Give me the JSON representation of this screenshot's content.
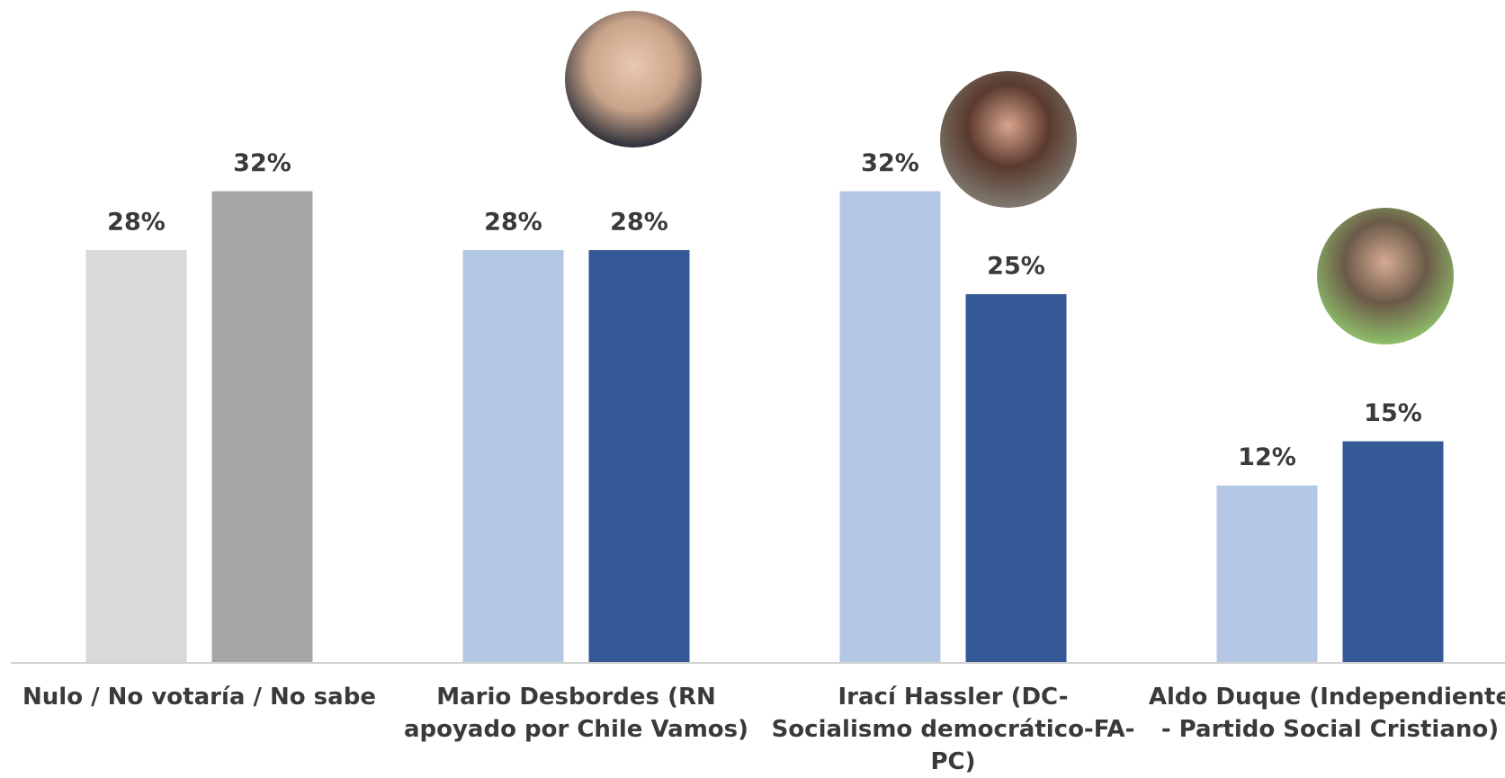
{
  "chart_data": {
    "type": "bar",
    "categories": [
      "Nulo / No votaría / No sabe",
      "Mario Desbordes (RN apoyado por Chile Vamos)",
      "Irací Hassler (DC-Socialismo democrático-FA-PC)",
      "Aldo Duque (Independiente - Partido Social Cristiano)"
    ],
    "series": [
      {
        "colors": [
          "#d9d9d9",
          "#b4c7e4",
          "#b4c7e4",
          "#b4c7e4"
        ],
        "values": [
          28,
          28,
          32,
          12
        ],
        "value_labels": [
          "28%",
          "28%",
          "32%",
          "12%"
        ]
      },
      {
        "colors": [
          "#a5a5a5",
          "#355897",
          "#355897",
          "#355897"
        ],
        "values": [
          32,
          28,
          25,
          15
        ],
        "value_labels": [
          "32%",
          "28%",
          "25%",
          "15%"
        ]
      }
    ],
    "ylim": [
      0,
      45
    ]
  }
}
